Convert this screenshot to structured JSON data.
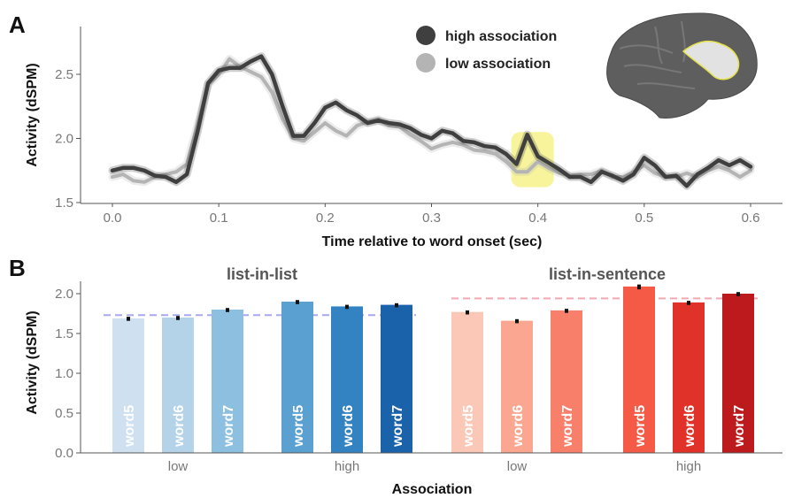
{
  "figure": {
    "panel_a_letter": "A",
    "panel_b_letter": "B"
  },
  "chart_data": [
    {
      "type": "line",
      "panel": "A",
      "xlabel": "Time relative to word onset (sec)",
      "ylabel": "Activity (dSPM)",
      "xlim": [
        -0.02,
        0.63
      ],
      "ylim": [
        1.48,
        2.82
      ],
      "x_ticks": [
        0.0,
        0.1,
        0.2,
        0.3,
        0.4,
        0.5,
        0.6
      ],
      "x_tick_labels": [
        "0.0",
        "0.1",
        "0.2",
        "0.3",
        "0.4",
        "0.5",
        "0.6"
      ],
      "y_ticks": [
        1.5,
        2.0,
        2.5
      ],
      "y_tick_labels": [
        "1.5",
        "2.0",
        "2.5"
      ],
      "grid": false,
      "legend_position": "top-right",
      "highlight": {
        "x": [
          0.375,
          0.415
        ],
        "color": "#f4f07a"
      },
      "inset": "brain-region-icon",
      "series": [
        {
          "name": "high association",
          "color": "#3f3f3f",
          "x": [
            0.0,
            0.01,
            0.02,
            0.03,
            0.04,
            0.05,
            0.06,
            0.07,
            0.08,
            0.09,
            0.1,
            0.11,
            0.12,
            0.13,
            0.14,
            0.15,
            0.16,
            0.17,
            0.18,
            0.19,
            0.2,
            0.21,
            0.22,
            0.23,
            0.24,
            0.25,
            0.26,
            0.27,
            0.28,
            0.29,
            0.3,
            0.31,
            0.32,
            0.33,
            0.34,
            0.35,
            0.36,
            0.37,
            0.38,
            0.39,
            0.4,
            0.41,
            0.42,
            0.43,
            0.44,
            0.45,
            0.46,
            0.47,
            0.48,
            0.49,
            0.5,
            0.51,
            0.52,
            0.53,
            0.54,
            0.55,
            0.56,
            0.57,
            0.58,
            0.59,
            0.6
          ],
          "values": [
            1.75,
            1.77,
            1.77,
            1.75,
            1.71,
            1.7,
            1.66,
            1.72,
            2.05,
            2.43,
            2.53,
            2.55,
            2.55,
            2.6,
            2.64,
            2.5,
            2.25,
            2.02,
            2.02,
            2.12,
            2.24,
            2.28,
            2.22,
            2.18,
            2.12,
            2.14,
            2.12,
            2.11,
            2.08,
            2.03,
            2.0,
            2.06,
            2.04,
            1.98,
            1.97,
            1.94,
            1.93,
            1.88,
            1.8,
            2.03,
            1.86,
            1.81,
            1.76,
            1.7,
            1.7,
            1.66,
            1.74,
            1.71,
            1.67,
            1.72,
            1.85,
            1.79,
            1.7,
            1.71,
            1.63,
            1.72,
            1.77,
            1.83,
            1.79,
            1.83,
            1.78
          ]
        },
        {
          "name": "low association",
          "color": "#b4b4b4",
          "x": [
            0.0,
            0.01,
            0.02,
            0.03,
            0.04,
            0.05,
            0.06,
            0.07,
            0.08,
            0.09,
            0.1,
            0.11,
            0.12,
            0.13,
            0.14,
            0.15,
            0.16,
            0.17,
            0.18,
            0.19,
            0.2,
            0.21,
            0.22,
            0.23,
            0.24,
            0.25,
            0.26,
            0.27,
            0.28,
            0.29,
            0.3,
            0.31,
            0.32,
            0.33,
            0.34,
            0.35,
            0.36,
            0.37,
            0.38,
            0.39,
            0.4,
            0.41,
            0.42,
            0.43,
            0.44,
            0.45,
            0.46,
            0.47,
            0.48,
            0.49,
            0.5,
            0.51,
            0.52,
            0.53,
            0.54,
            0.55,
            0.56,
            0.57,
            0.58,
            0.59,
            0.6
          ],
          "values": [
            1.7,
            1.72,
            1.67,
            1.66,
            1.7,
            1.72,
            1.74,
            1.8,
            2.1,
            2.42,
            2.5,
            2.62,
            2.56,
            2.52,
            2.48,
            2.36,
            2.15,
            2.0,
            1.98,
            2.05,
            2.12,
            2.06,
            2.02,
            2.1,
            2.13,
            2.15,
            2.1,
            2.09,
            2.03,
            1.98,
            1.92,
            1.95,
            1.97,
            1.95,
            1.91,
            1.9,
            1.88,
            1.82,
            1.74,
            1.74,
            1.82,
            1.77,
            1.73,
            1.71,
            1.72,
            1.72,
            1.75,
            1.7,
            1.7,
            1.74,
            1.79,
            1.73,
            1.7,
            1.7,
            1.73,
            1.7,
            1.75,
            1.78,
            1.75,
            1.7,
            1.75
          ]
        }
      ]
    },
    {
      "type": "bar",
      "panel": "B",
      "xlabel": "Association",
      "ylabel": "Activity (dSPM)",
      "ylim": [
        0.0,
        2.2
      ],
      "y_ticks": [
        0.0,
        0.5,
        1.0,
        1.5,
        2.0
      ],
      "y_tick_labels": [
        "0.0",
        "0.5",
        "1.0",
        "1.5",
        "2.0"
      ],
      "grid": false,
      "facets": [
        {
          "title": "list-in-list",
          "reference_line": {
            "value": 1.73,
            "color": "#a8a8f0"
          },
          "groups": [
            {
              "label": "low",
              "bars": [
                {
                  "label": "word5",
                  "value": 1.69,
                  "error": 0.02,
                  "color": "#cfe0f0"
                },
                {
                  "label": "word6",
                  "value": 1.7,
                  "error": 0.02,
                  "color": "#b4d2e8"
                },
                {
                  "label": "word7",
                  "value": 1.8,
                  "error": 0.02,
                  "color": "#8cbfe0"
                }
              ]
            },
            {
              "label": "high",
              "bars": [
                {
                  "label": "word5",
                  "value": 1.9,
                  "error": 0.02,
                  "color": "#5aa0d0"
                },
                {
                  "label": "word6",
                  "value": 1.84,
                  "error": 0.02,
                  "color": "#3382c2"
                },
                {
                  "label": "word7",
                  "value": 1.86,
                  "error": 0.02,
                  "color": "#1a62aa"
                }
              ]
            }
          ]
        },
        {
          "title": "list-in-sentence",
          "reference_line": {
            "value": 1.94,
            "color": "#f4a8b0"
          },
          "groups": [
            {
              "label": "low",
              "bars": [
                {
                  "label": "word5",
                  "value": 1.77,
                  "error": 0.02,
                  "color": "#fbc8b8"
                },
                {
                  "label": "word6",
                  "value": 1.66,
                  "error": 0.02,
                  "color": "#fba690"
                },
                {
                  "label": "word7",
                  "value": 1.79,
                  "error": 0.02,
                  "color": "#f8806a"
                }
              ]
            },
            {
              "label": "high",
              "bars": [
                {
                  "label": "word5",
                  "value": 2.09,
                  "error": 0.025,
                  "color": "#f45a45"
                },
                {
                  "label": "word6",
                  "value": 1.89,
                  "error": 0.02,
                  "color": "#e03228"
                },
                {
                  "label": "word7",
                  "value": 2.0,
                  "error": 0.02,
                  "color": "#bd1a1e"
                }
              ]
            }
          ]
        }
      ]
    }
  ]
}
